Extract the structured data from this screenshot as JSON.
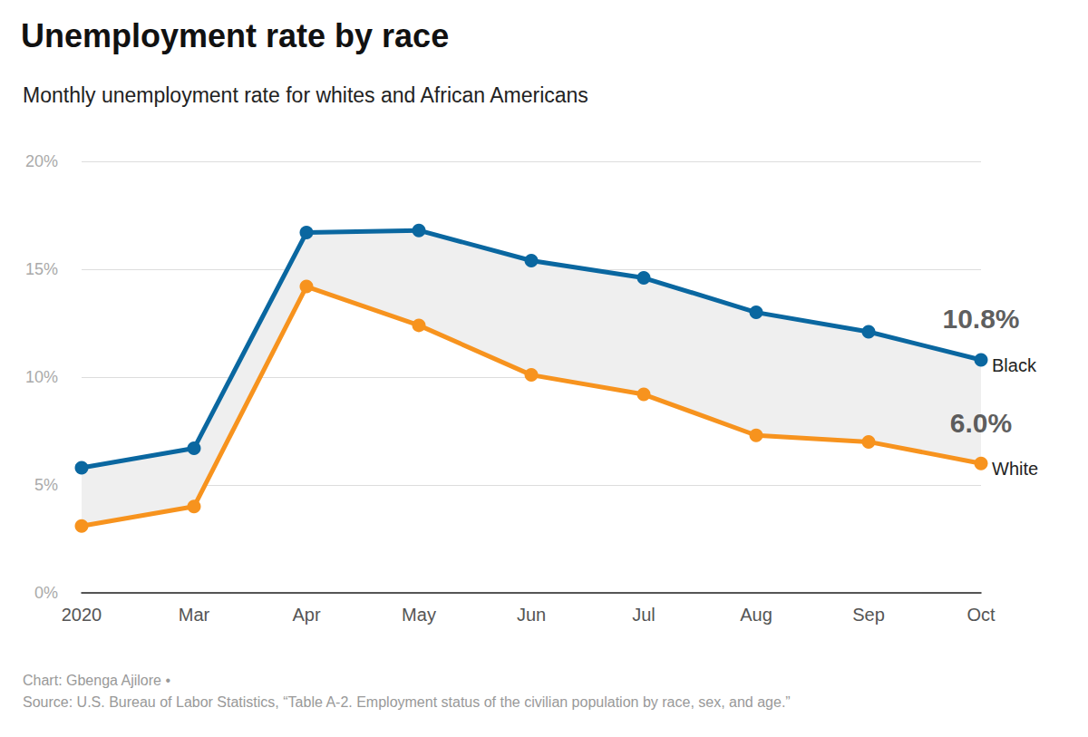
{
  "chart_data": {
    "type": "line",
    "title": "Unemployment rate by race",
    "subtitle": "Monthly unemployment rate for whites and African Americans",
    "footer": [
      "Chart: Gbenga Ajilore •",
      "Source: U.S. Bureau of Labor Statistics, “Table A-2. Employment status of the civilian population by race, sex, and age.”"
    ],
    "categories": [
      "2020",
      "Mar",
      "Apr",
      "May",
      "Jun",
      "Jul",
      "Aug",
      "Sep",
      "Oct"
    ],
    "series": [
      {
        "name": "Black",
        "color": "#0a67a0",
        "values": [
          5.8,
          6.7,
          16.7,
          16.8,
          15.4,
          14.6,
          13.0,
          12.1,
          10.8
        ]
      },
      {
        "name": "White",
        "color": "#f7931e",
        "values": [
          3.1,
          4.0,
          14.2,
          12.4,
          10.1,
          9.2,
          7.3,
          7.0,
          6.0
        ]
      }
    ],
    "annotations": [
      {
        "x": "Oct",
        "y": 10.8,
        "text": "10.8%"
      },
      {
        "x": "Oct",
        "y": 6.0,
        "text": "6.0%"
      }
    ],
    "ylim": [
      0,
      20
    ],
    "yticks": [
      {
        "value": 0,
        "label": "0%"
      },
      {
        "value": 5,
        "label": "5%"
      },
      {
        "value": 10,
        "label": "10%"
      },
      {
        "value": 15,
        "label": "15%"
      },
      {
        "value": 20,
        "label": "20%"
      }
    ],
    "grid": true,
    "marker": "circle"
  }
}
